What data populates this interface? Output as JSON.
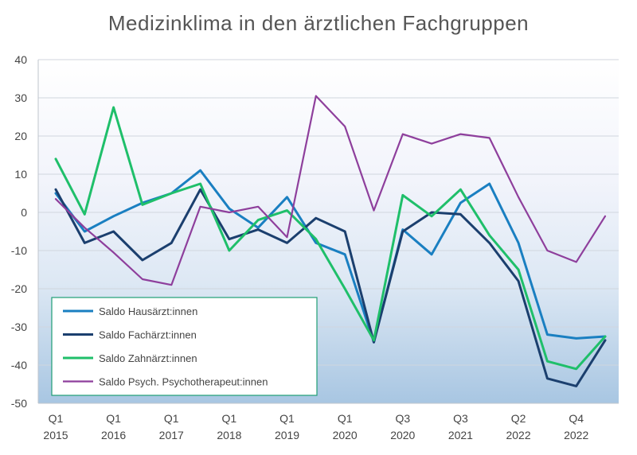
{
  "chart_data": {
    "type": "line",
    "title": "Medizinklima in den ärztlichen Fachgruppen",
    "xlabel": "",
    "ylabel": "",
    "ylim": [
      -50,
      40
    ],
    "yticks": [
      40,
      30,
      20,
      10,
      0,
      -10,
      -20,
      -30,
      -40,
      -50
    ],
    "x_tick_labels": [
      {
        "index": 0,
        "q": "Q1",
        "year": "2015"
      },
      {
        "index": 2,
        "q": "Q1",
        "year": "2016"
      },
      {
        "index": 4,
        "q": "Q1",
        "year": "2017"
      },
      {
        "index": 6,
        "q": "Q1",
        "year": "2018"
      },
      {
        "index": 8,
        "q": "Q1",
        "year": "2019"
      },
      {
        "index": 10,
        "q": "Q1",
        "year": "2020"
      },
      {
        "index": 12,
        "q": "Q3",
        "year": "2020"
      },
      {
        "index": 14,
        "q": "Q3",
        "year": "2021"
      },
      {
        "index": 16,
        "q": "Q2",
        "year": "2022"
      },
      {
        "index": 18,
        "q": "Q4",
        "year": "2022"
      }
    ],
    "point_count": 20,
    "grid": true,
    "legend_position": "bottom-left",
    "series": [
      {
        "name": "Saldo Hausärzt:innen",
        "color": "#1a7fc1",
        "values": [
          5,
          -5,
          -1,
          2.5,
          5,
          11,
          1,
          -4,
          4,
          -8,
          -11,
          -34,
          -4.5,
          -11,
          2.5,
          7.5,
          -8,
          -32,
          -33,
          -32.5
        ]
      },
      {
        "name": "Saldo Fachärzt:innen",
        "color": "#1b3f6e",
        "values": [
          6,
          -8,
          -5,
          -12.5,
          -8,
          6,
          -7,
          -4.5,
          -8,
          -1.5,
          -5,
          -34,
          -5,
          0,
          -0.5,
          -8,
          -18,
          -43.5,
          -45.5,
          -33.5
        ]
      },
      {
        "name": "Saldo Zahnärzt:innen",
        "color": "#1fbf6a",
        "values": [
          14,
          -0.5,
          27.5,
          2,
          5,
          7.5,
          -10,
          -2,
          0.5,
          -7,
          -20,
          -33.5,
          4.5,
          -1,
          6,
          -6,
          -15,
          -39,
          -41,
          -32.5
        ]
      },
      {
        "name": "Saldo Psych. Psychotherapeut:innen",
        "color": "#8e3f9c",
        "values": [
          3.5,
          -4,
          -10.5,
          -17.5,
          -19,
          1.5,
          0,
          1.5,
          -6.5,
          30.5,
          22.5,
          0.5,
          20.5,
          18,
          20.5,
          19.5,
          4,
          -10,
          -13,
          -1
        ]
      }
    ]
  }
}
